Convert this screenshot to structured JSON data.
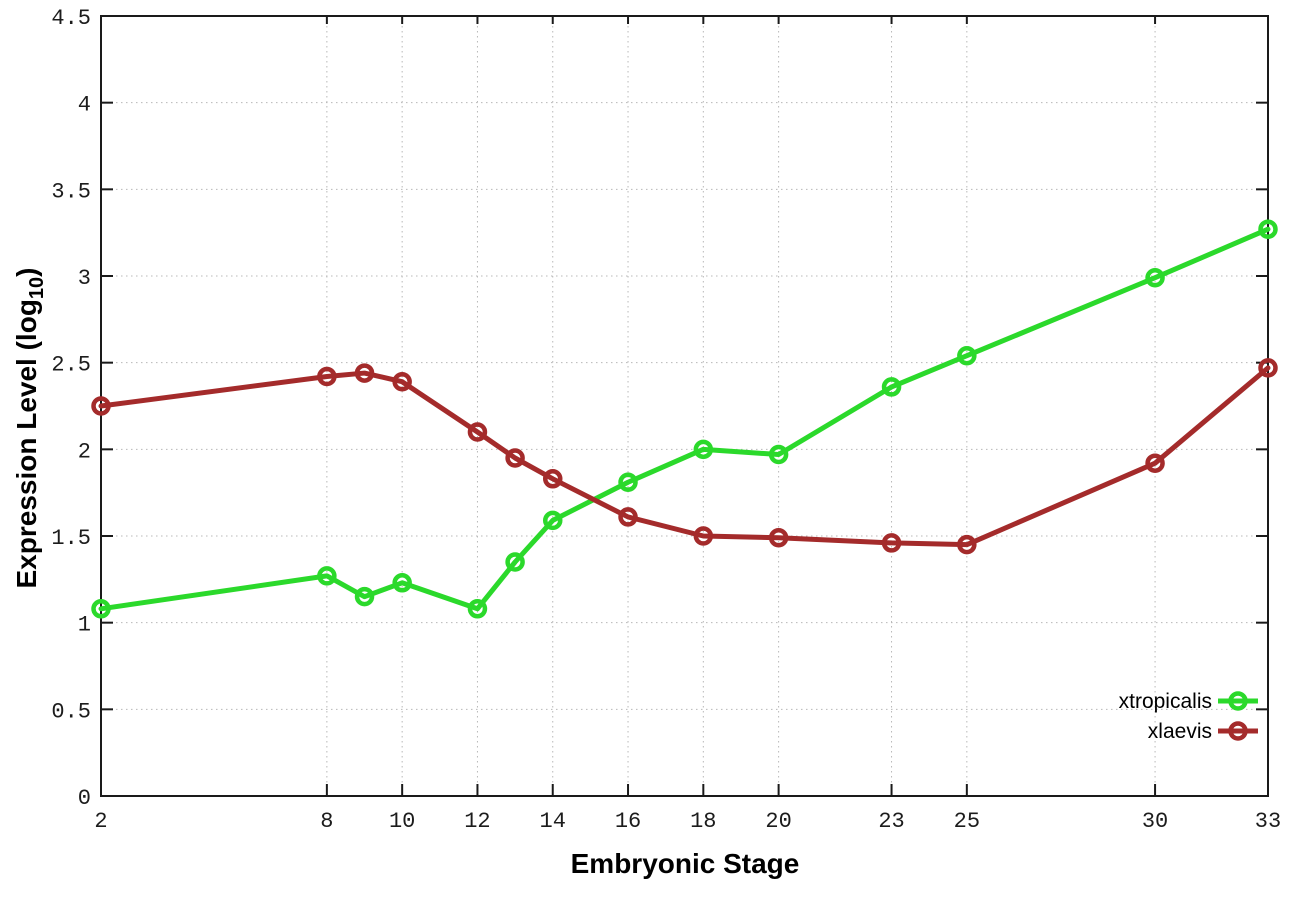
{
  "chart_data": {
    "type": "line",
    "title": "",
    "xlabel": "Embryonic Stage",
    "ylabel": "Expression Level (log10)",
    "ylabel_parts": {
      "pre": "Expression Level (log",
      "sub": "10",
      "post": ")"
    },
    "x": [
      2,
      8,
      9,
      10,
      12,
      13,
      14,
      16,
      18,
      20,
      23,
      25,
      30,
      33
    ],
    "series": [
      {
        "name": "xtropicalis",
        "color": "#2bd92b",
        "marker": "open-circle",
        "values": [
          1.08,
          1.27,
          1.15,
          1.23,
          1.08,
          1.35,
          1.59,
          1.81,
          2.0,
          1.97,
          2.36,
          2.54,
          2.99,
          3.27
        ]
      },
      {
        "name": "xlaevis",
        "color": "#a42b2b",
        "marker": "open-circle",
        "values": [
          2.25,
          2.42,
          2.44,
          2.39,
          2.1,
          1.95,
          1.83,
          1.61,
          1.5,
          1.49,
          1.46,
          1.45,
          1.92,
          2.47
        ]
      }
    ],
    "xlim": [
      2,
      33
    ],
    "ylim": [
      0,
      4.5
    ],
    "x_ticks": [
      2,
      8,
      10,
      12,
      14,
      16,
      18,
      20,
      23,
      25,
      30,
      33
    ],
    "x_tick_labels": [
      "2",
      "8",
      "10",
      "12",
      "14",
      "16",
      "18",
      "20",
      "23",
      "25",
      "30",
      "33"
    ],
    "y_ticks": [
      0,
      0.5,
      1,
      1.5,
      2,
      2.5,
      3,
      3.5,
      4,
      4.5
    ],
    "y_tick_labels": [
      "0",
      "0.5",
      "1",
      "1.5",
      "2",
      "2.5",
      "3",
      "3.5",
      "4",
      "4.5"
    ],
    "grid": true,
    "grid_color": "#b8b8b8",
    "frame_color": "#1a1a1a",
    "legend_position": "bottom-right"
  }
}
